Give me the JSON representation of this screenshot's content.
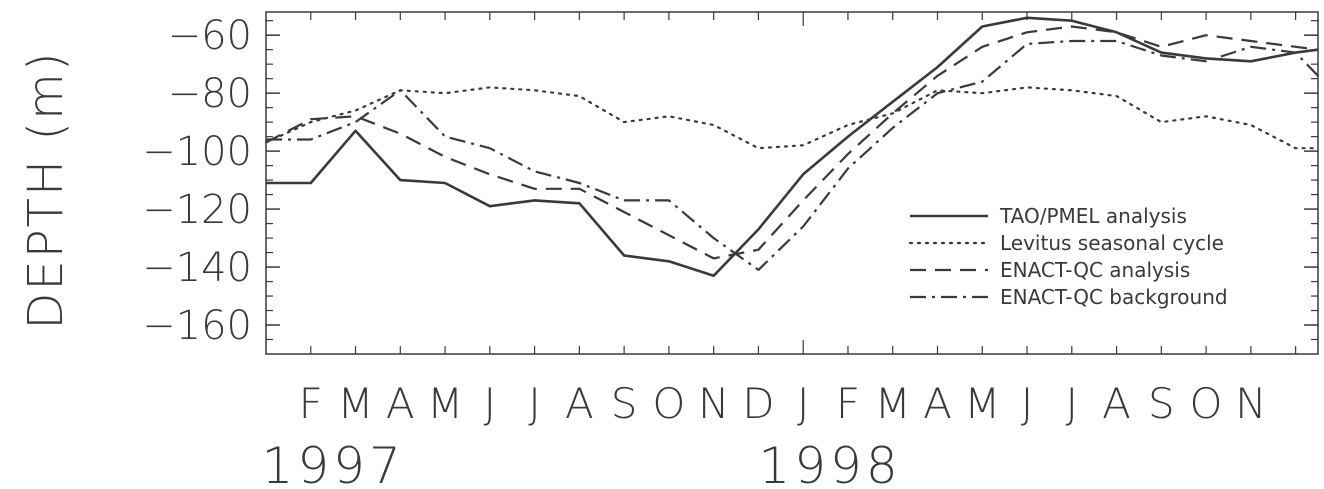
{
  "chart_data": {
    "type": "line",
    "xlabel": "",
    "ylabel": "DEPTH (m)",
    "ylim": [
      -170,
      -52
    ],
    "yticks": [
      -60,
      -80,
      -100,
      -120,
      -140,
      -160
    ],
    "ytick_labels": [
      "−60",
      "−80",
      "−100",
      "−120",
      "−140",
      "−160"
    ],
    "xlim": [
      0,
      23.5
    ],
    "grid": false,
    "legend_position": "lower-right",
    "month_labels": [
      "F",
      "M",
      "A",
      "M",
      "J",
      "J",
      "A",
      "S",
      "O",
      "N",
      "D",
      "J",
      "F",
      "M",
      "A",
      "M",
      "J",
      "J",
      "A",
      "S",
      "O",
      "N"
    ],
    "month_positions": [
      1,
      2,
      3,
      4,
      5,
      6,
      7,
      8,
      9,
      10,
      11,
      12,
      13,
      14,
      15,
      16,
      17,
      18,
      19,
      20,
      21,
      22
    ],
    "year_labels": [
      {
        "text": "1997",
        "position": 1.5
      },
      {
        "text": "1998",
        "position": 12.6
      }
    ],
    "series": [
      {
        "name": "TAO/PMEL analysis",
        "style": "solid",
        "x": [
          0,
          1,
          2,
          3,
          4,
          5,
          6,
          7,
          8,
          9,
          10,
          11,
          12,
          13,
          14,
          15,
          16,
          17,
          18,
          19,
          20,
          21,
          22,
          23,
          23.5
        ],
        "y": [
          -111,
          -111,
          -93,
          -110,
          -111,
          -119,
          -117,
          -118,
          -136,
          -138,
          -143,
          -127,
          -108,
          -95,
          -83,
          -71,
          -57,
          -54,
          -55,
          -59,
          -66,
          -68,
          -69,
          -66,
          -65
        ]
      },
      {
        "name": "Levitus seasonal cycle",
        "style": "dotted",
        "x": [
          0,
          1,
          2,
          3,
          4,
          5,
          6,
          7,
          8,
          9,
          10,
          11,
          12,
          13,
          14,
          15,
          16,
          17,
          18,
          19,
          20,
          21,
          22,
          23,
          23.5
        ],
        "y": [
          -97,
          -90,
          -86,
          -79,
          -80,
          -78,
          -79,
          -81,
          -90,
          -88,
          -91,
          -99,
          -98,
          -91,
          -87,
          -79,
          -80,
          -78,
          -79,
          -81,
          -90,
          -88,
          -91,
          -99,
          -99
        ]
      },
      {
        "name": "ENACT-QC analysis",
        "style": "dashed",
        "x": [
          0,
          1,
          2,
          3,
          4,
          5,
          6,
          7,
          8,
          9,
          10,
          11,
          12,
          13,
          14,
          15,
          16,
          17,
          18,
          19,
          20,
          21,
          22,
          23,
          23.5
        ],
        "y": [
          -97,
          -89,
          -88,
          -94,
          -102,
          -108,
          -113,
          -113,
          -121,
          -129,
          -137,
          -134,
          -117,
          -101,
          -87,
          -74,
          -64,
          -59,
          -57,
          -59,
          -64,
          -60,
          -62,
          -64,
          -65
        ]
      },
      {
        "name": "ENACT-QC background",
        "style": "dashdot",
        "x": [
          0,
          1,
          2,
          3,
          4,
          5,
          6,
          7,
          8,
          9,
          10,
          11,
          12,
          13,
          14,
          15,
          16,
          17,
          18,
          19,
          20,
          21,
          22,
          23,
          23.5
        ],
        "y": [
          -96,
          -96,
          -90,
          -79,
          -95,
          -99,
          -107,
          -111,
          -117,
          -117,
          -130,
          -141,
          -126,
          -106,
          -92,
          -80,
          -76,
          -63,
          -62,
          -62,
          -67,
          -69,
          -64,
          -66,
          -74
        ]
      }
    ]
  }
}
